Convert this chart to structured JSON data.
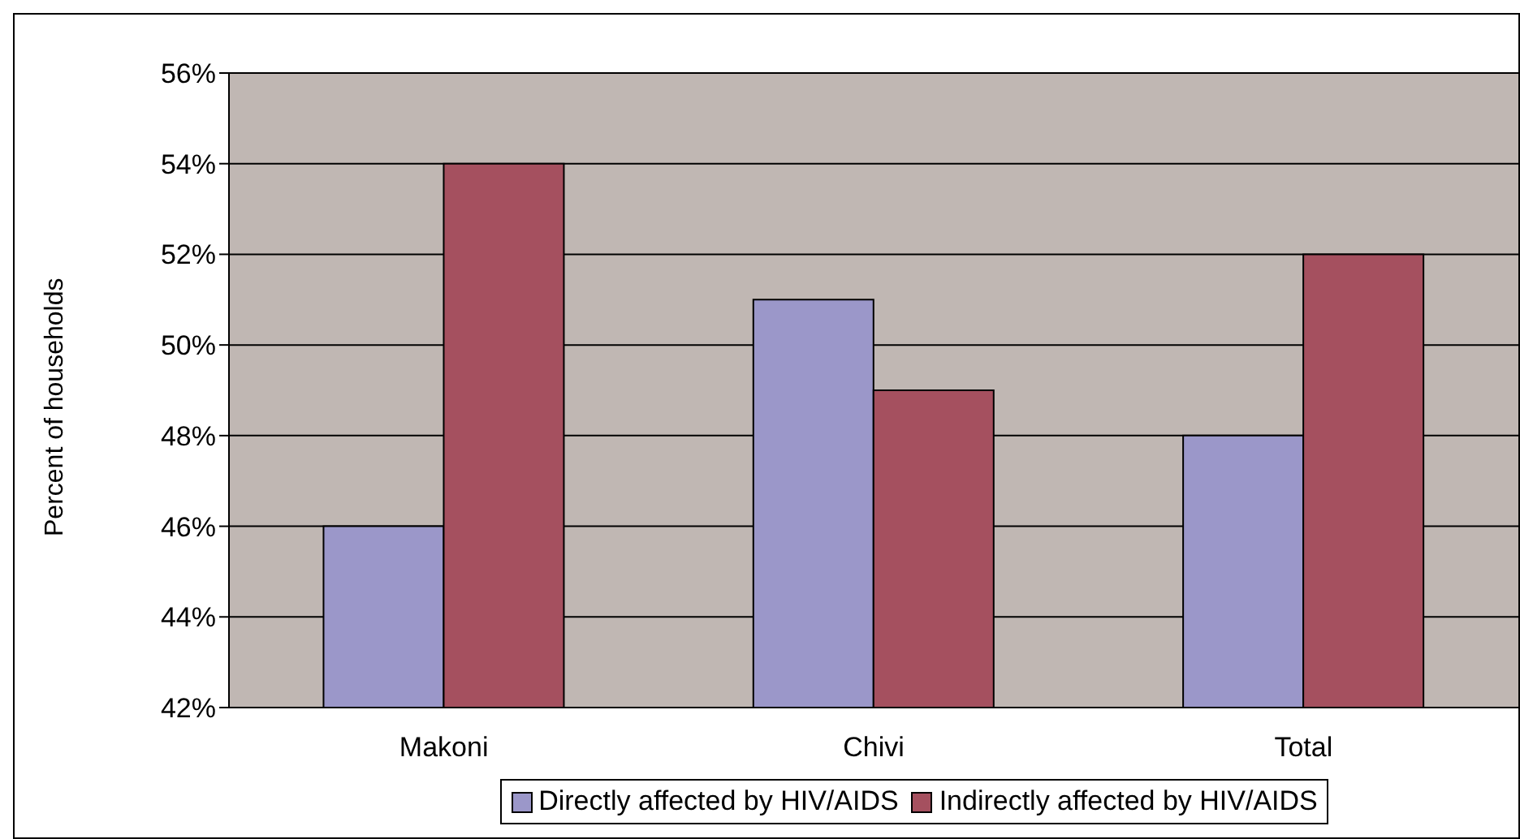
{
  "chart_data": {
    "type": "bar",
    "ylabel": "Percent of households",
    "categories": [
      "Makoni",
      "Chivi",
      "Total"
    ],
    "series": [
      {
        "name": "Directly affected by HIV/AIDS",
        "color": "#9b97c9",
        "values": [
          46,
          51,
          48
        ]
      },
      {
        "name": "Indirectly affected by HIV/AIDS",
        "color": "#a5505f",
        "values": [
          54,
          49,
          52
        ]
      }
    ],
    "ylim": [
      42,
      56
    ],
    "yticks": [
      {
        "value": 42,
        "label": "42%"
      },
      {
        "value": 44,
        "label": "44%"
      },
      {
        "value": 46,
        "label": "46%"
      },
      {
        "value": 48,
        "label": "48%"
      },
      {
        "value": 50,
        "label": "50%"
      },
      {
        "value": 52,
        "label": "52%"
      },
      {
        "value": 54,
        "label": "54%"
      },
      {
        "value": 56,
        "label": "56%"
      }
    ],
    "grid": "y",
    "legend": "bottom"
  }
}
